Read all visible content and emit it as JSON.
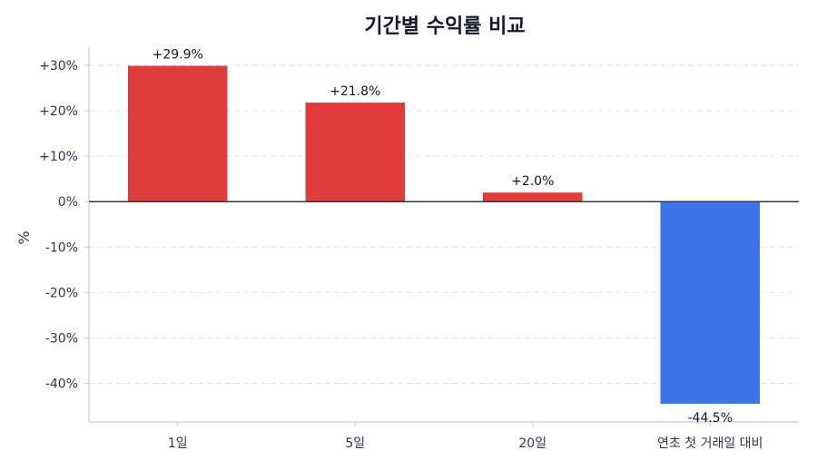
{
  "chart_data": {
    "type": "bar",
    "title": "기간별 수익률 비교",
    "xlabel": "",
    "ylabel": "%",
    "categories": [
      "1일",
      "5일",
      "20일",
      "연초 첫 거래일 대비"
    ],
    "values": [
      29.9,
      21.8,
      2.0,
      -44.5
    ],
    "value_labels": [
      "+29.9%",
      "+21.8%",
      "+2.0%",
      "-44.5%"
    ],
    "ylim": [
      -48.5,
      34
    ],
    "yticks": [
      30,
      20,
      10,
      0,
      -10,
      -20,
      -30,
      -40
    ],
    "ytick_labels": [
      "+30%",
      "+20%",
      "+10%",
      "0%",
      "-10%",
      "-20%",
      "-30%",
      "-40%"
    ],
    "grid": true,
    "colors": {
      "positive": "#e03c3c",
      "negative": "#3b73ea",
      "zero_line": "#2d3748",
      "axis": "#c8ccd4",
      "grid": "#e2e6ec"
    }
  }
}
